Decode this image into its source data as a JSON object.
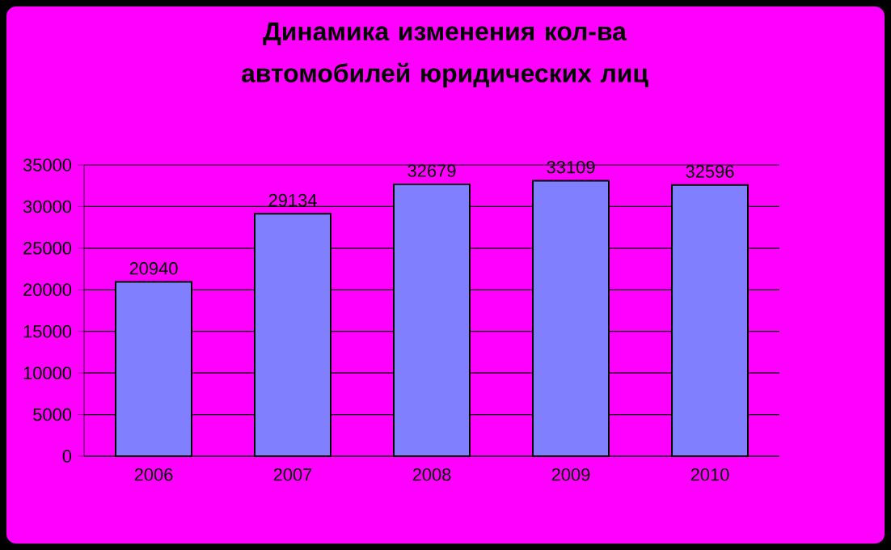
{
  "chart_data": {
    "type": "bar",
    "title": "Динамика изменения кол-ва автомобилей юридических лиц",
    "categories": [
      "2006",
      "2007",
      "2008",
      "2009",
      "2010"
    ],
    "values": [
      20940,
      29134,
      32679,
      33109,
      32596
    ],
    "color": "#8080ff",
    "data_labels": true,
    "grid": "y",
    "ylim": [
      0,
      35000
    ],
    "yticks": [
      0,
      5000,
      10000,
      15000,
      20000,
      25000,
      30000,
      35000
    ]
  }
}
